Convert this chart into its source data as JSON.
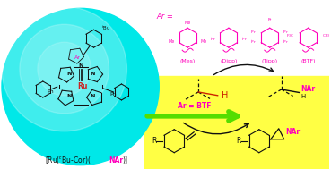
{
  "bg_color": "#ffffff",
  "cyan_circle_color": "#00e8e8",
  "cyan_highlight_color": "#b0f8f8",
  "yellow_color": "#ffff44",
  "green_color": "#55dd00",
  "magenta_color": "#ff00bb",
  "dark_color": "#111111",
  "red_color": "#cc2200",
  "ar_names": [
    "(Mes)",
    "(Dipp)",
    "(Tipp)",
    "(BTF)"
  ],
  "label_parts": [
    "[Ru(",
    "tBu",
    "-Cor)(",
    "NAr",
    ")]"
  ]
}
